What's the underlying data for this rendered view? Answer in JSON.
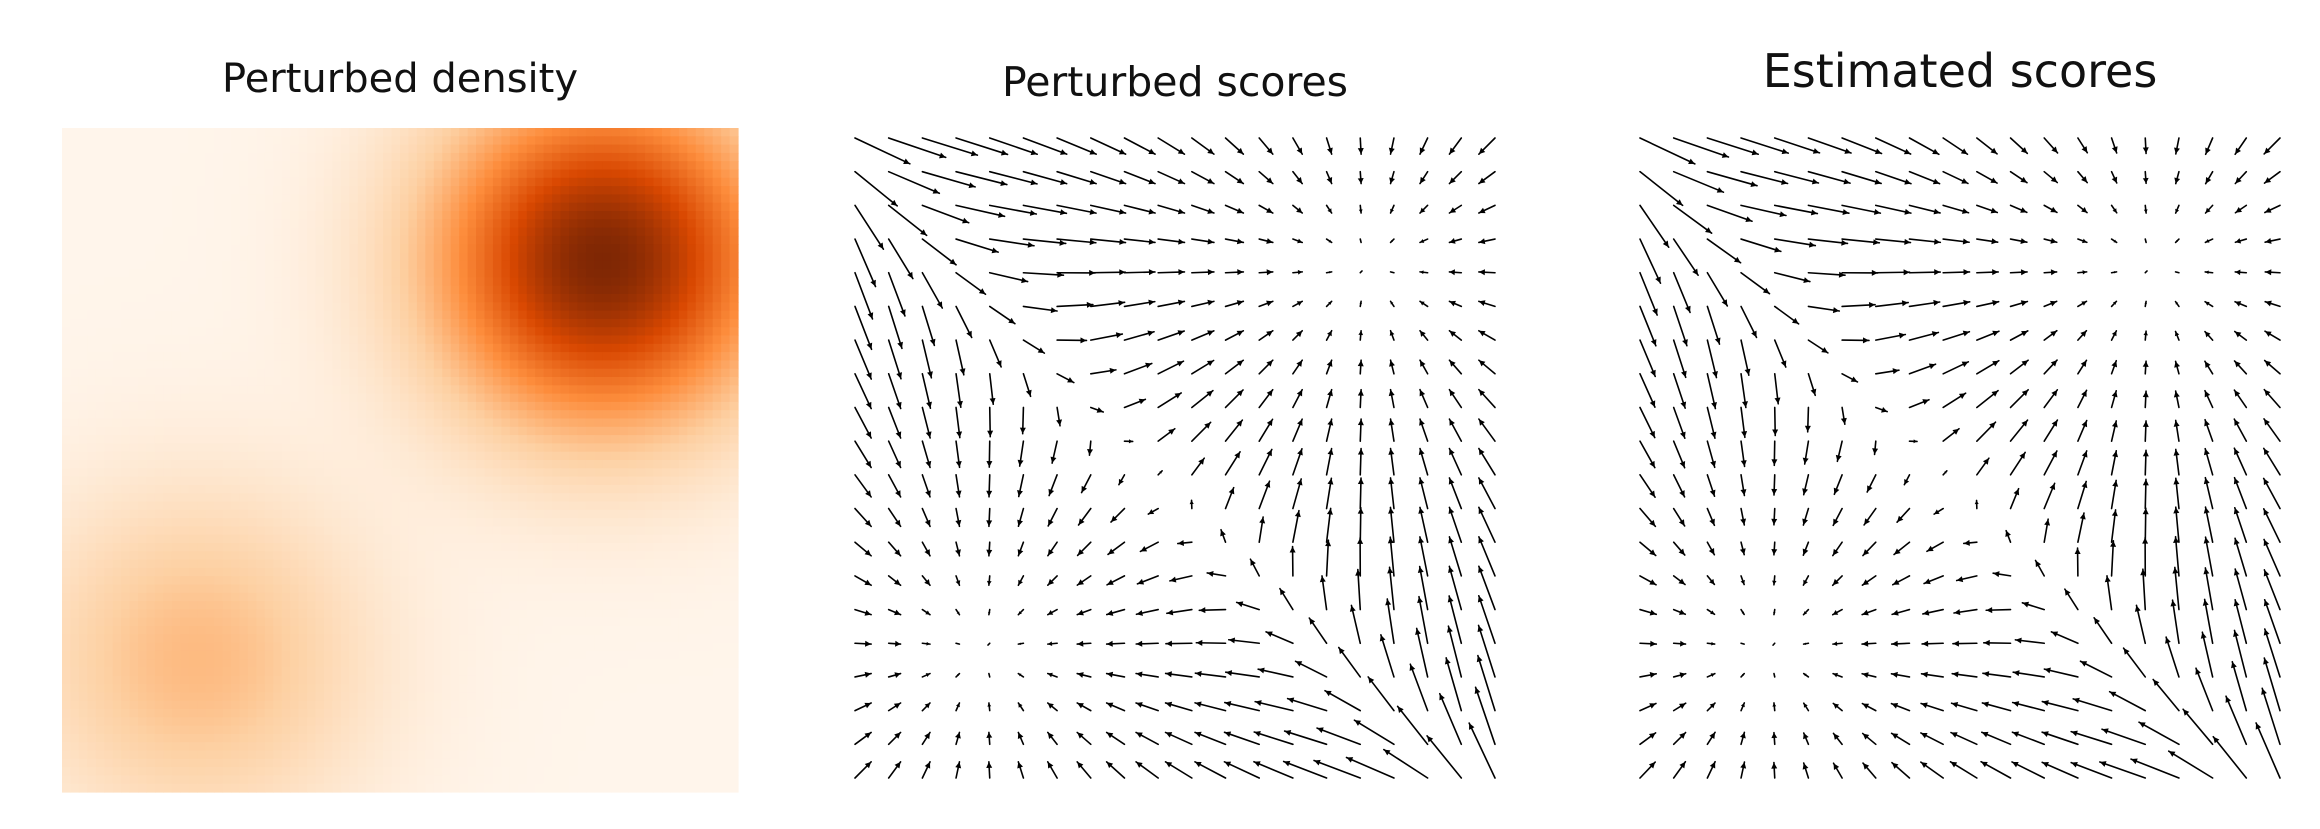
{
  "figure": {
    "panels": [
      {
        "title": "Perturbed density"
      },
      {
        "title": "Perturbed scores"
      },
      {
        "title": "Estimated scores"
      }
    ]
  },
  "chart_data": [
    {
      "type": "heatmap",
      "title": "Perturbed density",
      "colormap": "Oranges",
      "colors": [
        "#fff5eb",
        "#fdd0a2",
        "#fd8d3c",
        "#d94801",
        "#7f2704"
      ],
      "x_range": [
        -5,
        5
      ],
      "y_range": [
        -5,
        5
      ],
      "resolution": 80,
      "components": [
        {
          "weight": 0.8,
          "mean": [
            3.0,
            3.0
          ],
          "std": 1.6
        },
        {
          "weight": 0.2,
          "mean": [
            -3.0,
            -3.0
          ],
          "std": 1.6
        }
      ],
      "axes": "off"
    },
    {
      "type": "quiver",
      "title": "Perturbed scores",
      "x_range": [
        -5,
        5
      ],
      "y_range": [
        -5,
        5
      ],
      "grid": [
        20,
        20
      ],
      "arrow_color": "#000000",
      "axes": "off"
    },
    {
      "type": "quiver",
      "title": "Estimated scores",
      "x_range": [
        -5,
        5
      ],
      "y_range": [
        -5,
        5
      ],
      "grid": [
        20,
        20
      ],
      "arrow_color": "#000000",
      "axes": "off"
    }
  ]
}
